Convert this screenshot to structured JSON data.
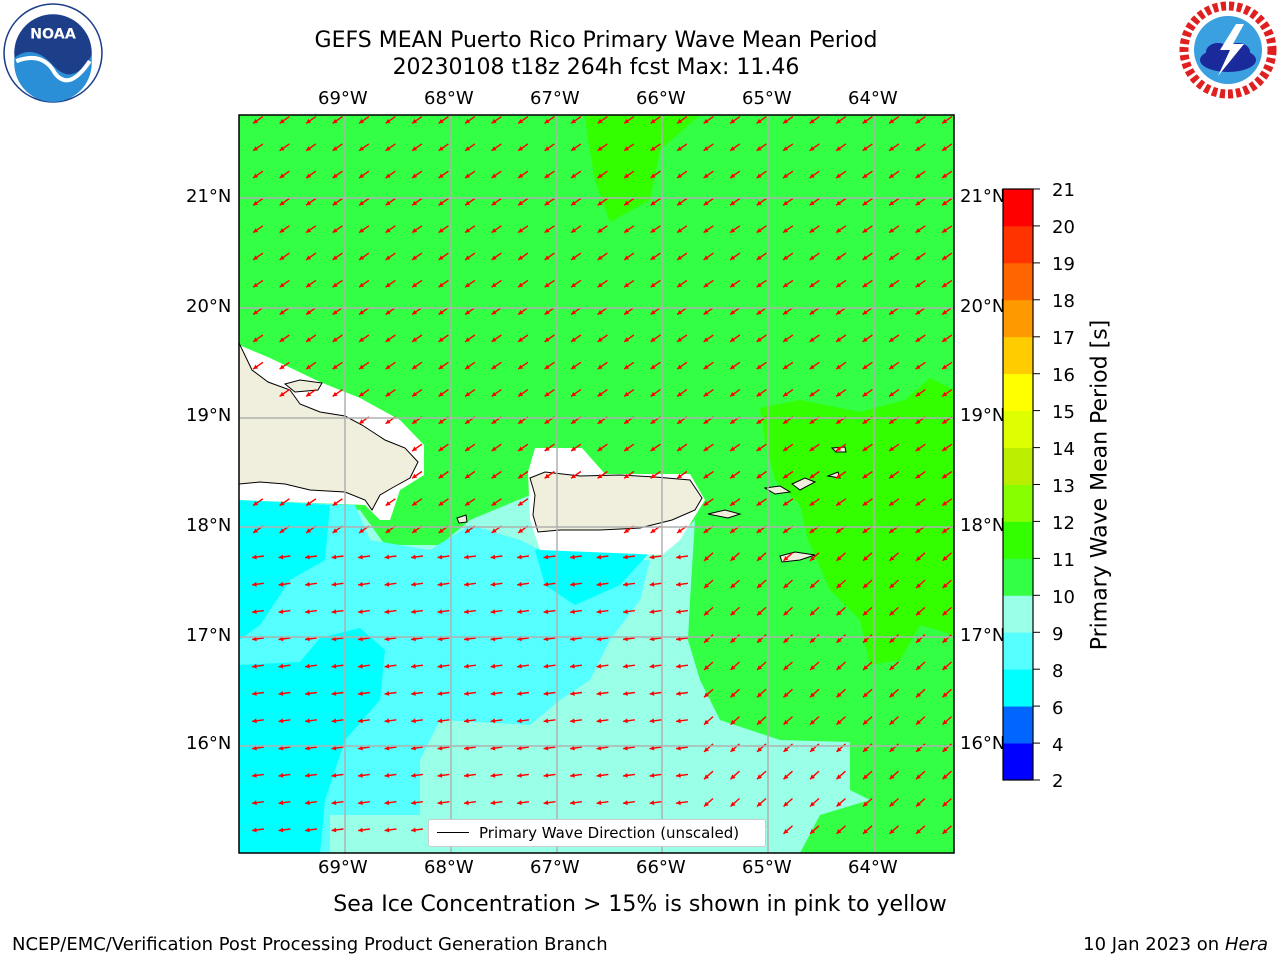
{
  "title": {
    "line1": "GEFS MEAN Puerto Rico Primary Wave Mean Period",
    "line2": "20230108 t18z 264h fcst   Max: 11.46"
  },
  "logos": {
    "left": "noaa-logo",
    "right": "nws-logo"
  },
  "map": {
    "lon_labels": [
      "69°W",
      "68°W",
      "67°W",
      "66°W",
      "65°W",
      "64°W"
    ],
    "lat_labels": [
      "21°N",
      "20°N",
      "19°N",
      "18°N",
      "17°N",
      "16°N"
    ],
    "legend_label": "Primary Wave Direction (unscaled)",
    "arrow_color": "#ff0000",
    "land_color": "#f0eedc"
  },
  "colorbar": {
    "label": "Primary Wave Mean Period [s]",
    "ticks": [
      "21",
      "20",
      "19",
      "18",
      "17",
      "16",
      "15",
      "14",
      "13",
      "12",
      "11",
      "10",
      "9",
      "8",
      "6",
      "4",
      "2"
    ],
    "colors_bottom_to_top": [
      "#0000ff",
      "#0066ff",
      "#00ffff",
      "#55ffff",
      "#99ffe6",
      "#33ff44",
      "#33ff00",
      "#88ff00",
      "#bbee00",
      "#ddff00",
      "#ffff00",
      "#ffcc00",
      "#ff9900",
      "#ff6600",
      "#ff3300",
      "#ff0000"
    ]
  },
  "caption": "Sea Ice Concentration > 15% is shown in pink to yellow",
  "footer": {
    "left": "NCEP/EMC/Verification Post Processing Product Generation Branch",
    "right_date": "10 Jan 2023 on ",
    "right_host": "Hera"
  }
}
